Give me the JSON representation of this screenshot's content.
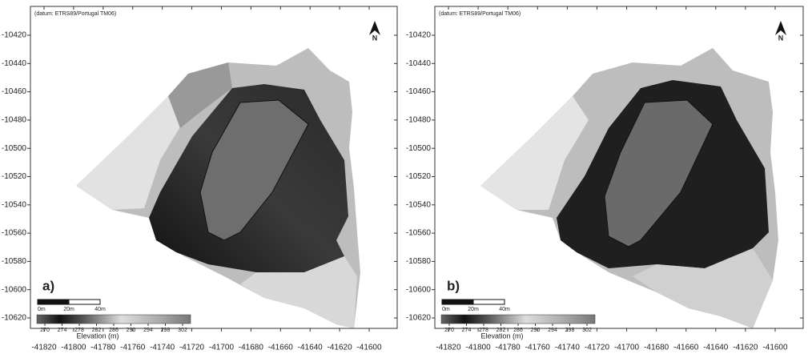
{
  "panels": [
    {
      "label": "a)",
      "datum": "(datum: ETRS89/Portugal TM06)",
      "north": "N",
      "scale_bar": [
        "0m",
        "20m",
        "40m"
      ],
      "colorbar": {
        "title": "Elevation (m)",
        "ticks": [
          270,
          274,
          278,
          282,
          286,
          290,
          294,
          298,
          302
        ]
      },
      "x_ticks": [
        -41820,
        -41800,
        -41780,
        -41760,
        -41740,
        -41720,
        -41700,
        -41680,
        -41660,
        -41640,
        -41620,
        -41600
      ],
      "y_ticks": [
        -10420,
        -10440,
        -10460,
        -10480,
        -10500,
        -10520,
        -10540,
        -10560,
        -10580,
        -10600,
        -10620
      ]
    },
    {
      "label": "b)",
      "datum": "(datum: ETRS89/Portugal TM06)",
      "north": "N",
      "scale_bar": [
        "0m",
        "20m",
        "40m"
      ],
      "colorbar": {
        "title": "Elevation (m)",
        "ticks": [
          270,
          274,
          278,
          282,
          286,
          290,
          294,
          298,
          302
        ]
      },
      "x_ticks": [
        -41820,
        -41800,
        -41780,
        -41760,
        -41740,
        -41720,
        -41700,
        -41680,
        -41660,
        -41640,
        -41620,
        -41600
      ],
      "y_ticks": [
        -10420,
        -10440,
        -10460,
        -10480,
        -10500,
        -10520,
        -10540,
        -10560,
        -10580,
        -10600,
        -10620
      ]
    }
  ]
}
